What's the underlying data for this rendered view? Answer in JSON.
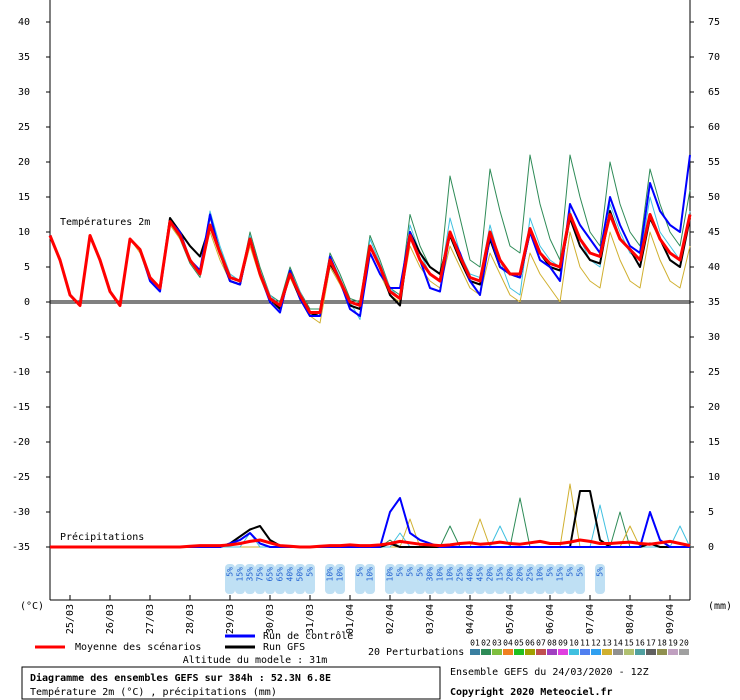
{
  "chart_data": {
    "type": "line",
    "title": "Diagramme des ensembles GEFS sur 384h : 52.3N 6.8E",
    "subtitle": "Température 2m (°C) , précipitations (mm)",
    "run_label": "Ensemble GEFS du 24/03/2020 - 12Z",
    "copyright": "Copyright 2020 Meteociel.fr",
    "altitude": "Altitude du modele : 31m",
    "y_label": "(°C)",
    "y2_label": "(mm)",
    "temp_label": "Températures 2m",
    "precip_label": "Précipitations",
    "perturbation_label": "20 Perturbations",
    "perturbation_keys": {
      "labels": [
        "01",
        "02",
        "03",
        "04",
        "05",
        "06",
        "07",
        "08",
        "09",
        "10",
        "11",
        "12",
        "13",
        "14",
        "15",
        "16",
        "17",
        "18",
        "19",
        "20"
      ],
      "colors": [
        "#3a7fa0",
        "#2e8b57",
        "#7fbf3f",
        "#f08020",
        "#20c020",
        "#a0a000",
        "#c05050",
        "#a040c0",
        "#e040e0",
        "#40c0e0",
        "#5080f0",
        "#30a0f0",
        "#d0b030",
        "#909090",
        "#b0c070",
        "#50a0a0",
        "#606060",
        "#909050",
        "#c0a0c0",
        "#a0a0a0"
      ]
    },
    "xlim": [
      0,
      384
    ],
    "xticks": [
      {
        "value": 12,
        "label": "25/03"
      },
      {
        "value": 36,
        "label": "26/03"
      },
      {
        "value": 60,
        "label": "27/03"
      },
      {
        "value": 84,
        "label": "28/03"
      },
      {
        "value": 108,
        "label": "29/03"
      },
      {
        "value": 132,
        "label": "30/03"
      },
      {
        "value": 156,
        "label": "31/03"
      },
      {
        "value": 180,
        "label": "01/04"
      },
      {
        "value": 204,
        "label": "02/04"
      },
      {
        "value": 228,
        "label": "03/04"
      },
      {
        "value": 252,
        "label": "04/04"
      },
      {
        "value": 276,
        "label": "05/04"
      },
      {
        "value": 300,
        "label": "06/04"
      },
      {
        "value": 324,
        "label": "07/04"
      },
      {
        "value": 348,
        "label": "08/04"
      },
      {
        "value": 372,
        "label": "09/04"
      }
    ],
    "ylim": [
      -39,
      43
    ],
    "yticks": [
      -35,
      -30,
      -25,
      -20,
      -15,
      -10,
      -5,
      0,
      5,
      10,
      15,
      20,
      25,
      30,
      35,
      40
    ],
    "y2lim": [
      -4,
      78
    ],
    "y2ticks": [
      0,
      5,
      10,
      15,
      20,
      25,
      30,
      35,
      40,
      45,
      50,
      55,
      60,
      65,
      70,
      75
    ],
    "x": [
      0,
      6,
      12,
      18,
      24,
      30,
      36,
      42,
      48,
      54,
      60,
      66,
      72,
      78,
      84,
      90,
      96,
      102,
      108,
      114,
      120,
      126,
      132,
      138,
      144,
      150,
      156,
      162,
      168,
      174,
      180,
      186,
      192,
      198,
      204,
      210,
      216,
      222,
      228,
      234,
      240,
      246,
      252,
      258,
      264,
      270,
      276,
      282,
      288,
      294,
      300,
      306,
      312,
      318,
      324,
      330,
      336,
      342,
      348,
      354,
      360,
      366,
      372,
      378,
      384
    ],
    "series": [
      {
        "color": "#2e8b57",
        "temperature": [
          9.5,
          6,
          1,
          -0.5,
          9.5,
          6,
          1.5,
          -0.5,
          9,
          7.5,
          3.5,
          2,
          11.5,
          9,
          5.5,
          3.5,
          12,
          7.5,
          4,
          3,
          10,
          5,
          1,
          0,
          5,
          1.5,
          -1,
          -1,
          7,
          4,
          0.5,
          0,
          9.5,
          6,
          2,
          1,
          12.5,
          8,
          5,
          4,
          18,
          12,
          6,
          5,
          19,
          13,
          8,
          7,
          21,
          14,
          9,
          6,
          21,
          15,
          10,
          8,
          20,
          14,
          10,
          8,
          19,
          14,
          10,
          8,
          16
        ],
        "precipitation": [
          0,
          0,
          0,
          0,
          0,
          0,
          0,
          0,
          0,
          0,
          0,
          0,
          0,
          0,
          0,
          0,
          0,
          0,
          0,
          0,
          0,
          0,
          0,
          0,
          0,
          0,
          0,
          0,
          0,
          0,
          0,
          0,
          0,
          0,
          1,
          0,
          0,
          0,
          0,
          0,
          3,
          0,
          0,
          0,
          0,
          0,
          0,
          7,
          0,
          0,
          0,
          0,
          0,
          0,
          0,
          0,
          0,
          5,
          0,
          0,
          0,
          0,
          0,
          0,
          0
        ]
      },
      {
        "color": "#d0b030",
        "temperature": [
          9.5,
          6,
          1,
          -0.5,
          9.5,
          6,
          1.5,
          -0.5,
          9,
          7,
          3,
          1.5,
          11,
          9,
          6,
          4,
          10,
          6,
          3,
          2.5,
          8,
          3.5,
          0,
          -1,
          3.5,
          0.5,
          -2,
          -3,
          5,
          2.5,
          -0.5,
          -1,
          7,
          4,
          1,
          0,
          8,
          5,
          3,
          2,
          8,
          5,
          2,
          1,
          7,
          4,
          1,
          0,
          7,
          4,
          2,
          0,
          10,
          5,
          3,
          2,
          10,
          6,
          3,
          2,
          10,
          6,
          3,
          2,
          8
        ],
        "precipitation": [
          0,
          0,
          0,
          0,
          0,
          0,
          0,
          0,
          0,
          0,
          0,
          0,
          0,
          0,
          0,
          0,
          0,
          0,
          0,
          0,
          0,
          0,
          0,
          0,
          0,
          0,
          0,
          0,
          0,
          0,
          0,
          0,
          0,
          0,
          0,
          0,
          4,
          0,
          0,
          0,
          0,
          0,
          0,
          4,
          0,
          0,
          0,
          0,
          0,
          0,
          0,
          0,
          9,
          0,
          0,
          0,
          0,
          0,
          3,
          0,
          0,
          0,
          0,
          0,
          0
        ]
      },
      {
        "color": "#40c0e0",
        "temperature": [
          9.5,
          6,
          1,
          -0.5,
          9.5,
          6,
          1.5,
          -0.5,
          9,
          7.5,
          3.5,
          2,
          11.5,
          9.5,
          6,
          4,
          13,
          8,
          4,
          3,
          9.5,
          4.5,
          1,
          -0.5,
          4.5,
          1.5,
          -1.5,
          -2,
          6.5,
          3.5,
          0,
          -2.5,
          9,
          5.5,
          2,
          0.5,
          11,
          7,
          4,
          3,
          12,
          7,
          4,
          3.5,
          11,
          6,
          2,
          1,
          12,
          8,
          6,
          5,
          13,
          9,
          6,
          5,
          14,
          10,
          7,
          6,
          15,
          10,
          8,
          6,
          13
        ],
        "precipitation": [
          0,
          0,
          0,
          0,
          0,
          0,
          0,
          0,
          0,
          0,
          0,
          0,
          0,
          0,
          0,
          0,
          0,
          0,
          0,
          0,
          2,
          0,
          0,
          0,
          0,
          0,
          0,
          0,
          0,
          0,
          0,
          0,
          0,
          0,
          0,
          2,
          0,
          0,
          0,
          0,
          0,
          0,
          0,
          0,
          0,
          3,
          0,
          0,
          0,
          0,
          0,
          0,
          0,
          0,
          0,
          6,
          0,
          0,
          0,
          0,
          0,
          0,
          0,
          3,
          0
        ]
      },
      {
        "name": "Run GFS",
        "color": "#000000",
        "temperature": [
          9.5,
          6,
          1,
          -0.5,
          9.5,
          6,
          1.5,
          -0.5,
          9,
          7.5,
          3.5,
          2,
          12,
          10,
          8,
          6.5,
          11,
          7,
          3,
          2.5,
          9,
          4,
          0.5,
          -1,
          4,
          0.5,
          -2,
          -1.5,
          5.5,
          3,
          -0.5,
          -1,
          8,
          5,
          1,
          -0.5,
          10,
          7,
          5,
          4,
          9.5,
          6,
          3,
          2.5,
          9,
          5,
          4,
          3.5,
          10,
          7,
          5,
          4.5,
          12,
          8,
          6,
          5.5,
          13,
          9,
          7.5,
          5,
          12,
          9,
          6,
          5,
          12
        ],
        "precipitation": [
          0,
          0,
          0,
          0,
          0,
          0,
          0,
          0,
          0,
          0,
          0,
          0,
          0,
          0,
          0,
          0,
          0,
          0,
          0.5,
          1.5,
          2.5,
          3,
          1,
          0.2,
          0,
          0,
          0,
          0,
          0,
          0,
          0,
          0,
          0,
          0,
          0.5,
          0,
          0,
          0,
          0,
          0,
          0,
          0,
          0,
          0,
          0,
          0,
          0,
          0,
          0,
          0,
          0,
          0,
          0,
          8,
          8,
          1,
          0,
          0,
          0,
          0,
          0.5,
          0,
          0,
          0,
          0
        ]
      },
      {
        "name": "Run de contrôle",
        "color": "#0000ff",
        "temperature": [
          9.5,
          6,
          1,
          -0.5,
          9.5,
          6,
          1.5,
          -0.5,
          9,
          7.5,
          3,
          1.5,
          11.5,
          10,
          6,
          4.5,
          12.5,
          7,
          3,
          2.5,
          9,
          4,
          0,
          -1.5,
          4.5,
          0.5,
          -2,
          -2,
          6.5,
          3,
          -1,
          -2,
          7,
          4,
          2,
          2,
          10,
          6,
          2,
          1.5,
          10,
          7,
          3,
          1,
          9.5,
          5,
          4,
          3.5,
          10,
          6,
          5,
          3,
          14,
          11,
          9,
          7,
          15,
          11,
          8,
          7,
          17,
          13,
          11,
          10,
          21
        ],
        "precipitation": [
          0,
          0,
          0,
          0,
          0,
          0,
          0,
          0,
          0,
          0,
          0,
          0,
          0,
          0,
          0,
          0,
          0,
          0,
          0.5,
          1,
          2,
          0.5,
          0,
          0,
          0,
          0,
          0,
          0,
          0,
          0,
          0,
          0,
          0,
          0,
          5,
          7,
          2,
          1,
          0.5,
          0,
          0,
          0,
          0,
          0,
          0,
          0,
          0,
          0,
          0,
          0,
          0,
          0,
          0,
          0,
          0,
          0,
          0,
          0,
          0,
          0,
          5,
          1,
          0,
          0,
          0
        ]
      },
      {
        "name": "Moyenne des scénarios",
        "color": "#ff0000",
        "temperature": [
          9.5,
          6,
          1,
          -0.5,
          9.5,
          6,
          1.5,
          -0.5,
          9,
          7.5,
          3.5,
          2,
          11.5,
          9.5,
          6,
          4,
          11,
          7,
          3.5,
          3,
          9,
          4,
          0.5,
          -0.5,
          4,
          1,
          -1.5,
          -1.5,
          6,
          3,
          0,
          -0.5,
          8,
          5,
          1.5,
          0.5,
          9.5,
          6,
          4,
          3,
          10,
          6.5,
          3.5,
          3,
          10,
          6,
          4,
          4,
          10.5,
          7,
          5.5,
          5,
          12.5,
          9,
          7,
          6.5,
          12.5,
          9,
          7.5,
          6,
          12.5,
          9,
          7,
          6,
          12.5
        ],
        "precipitation": [
          0,
          0,
          0,
          0,
          0,
          0,
          0,
          0,
          0,
          0,
          0,
          0,
          0,
          0,
          0.1,
          0.2,
          0.2,
          0.2,
          0.3,
          0.5,
          0.8,
          1,
          0.6,
          0.2,
          0.1,
          0,
          0,
          0.1,
          0.2,
          0.2,
          0.3,
          0.2,
          0.2,
          0.3,
          0.5,
          0.8,
          0.6,
          0.4,
          0.3,
          0.2,
          0.3,
          0.5,
          0.6,
          0.4,
          0.5,
          0.7,
          0.5,
          0.4,
          0.6,
          0.8,
          0.5,
          0.5,
          0.7,
          1,
          0.8,
          0.5,
          0.5,
          0.6,
          0.7,
          0.5,
          0.4,
          0.6,
          0.8,
          0.5,
          0.2
        ]
      }
    ],
    "snow": {
      "x": [
        108,
        114,
        120,
        126,
        132,
        138,
        144,
        150,
        156,
        168,
        174,
        186,
        192,
        204,
        210,
        216,
        222,
        228,
        234,
        240,
        246,
        252,
        258,
        264,
        270,
        276,
        282,
        288,
        294,
        300,
        306,
        312,
        318,
        330
      ],
      "labels": [
        "5%",
        "15%",
        "35%",
        "75%",
        "65%",
        "65%",
        "40%",
        "50%",
        "5%",
        "10%",
        "10%",
        "5%",
        "10%",
        "10%",
        "5%",
        "5%",
        "5%",
        "30%",
        "10%",
        "10%",
        "25%",
        "40%",
        "45%",
        "20%",
        "15%",
        "20%",
        "20%",
        "25%",
        "10%",
        "5%",
        "15%",
        "5%",
        "5%",
        "5%"
      ]
    }
  }
}
